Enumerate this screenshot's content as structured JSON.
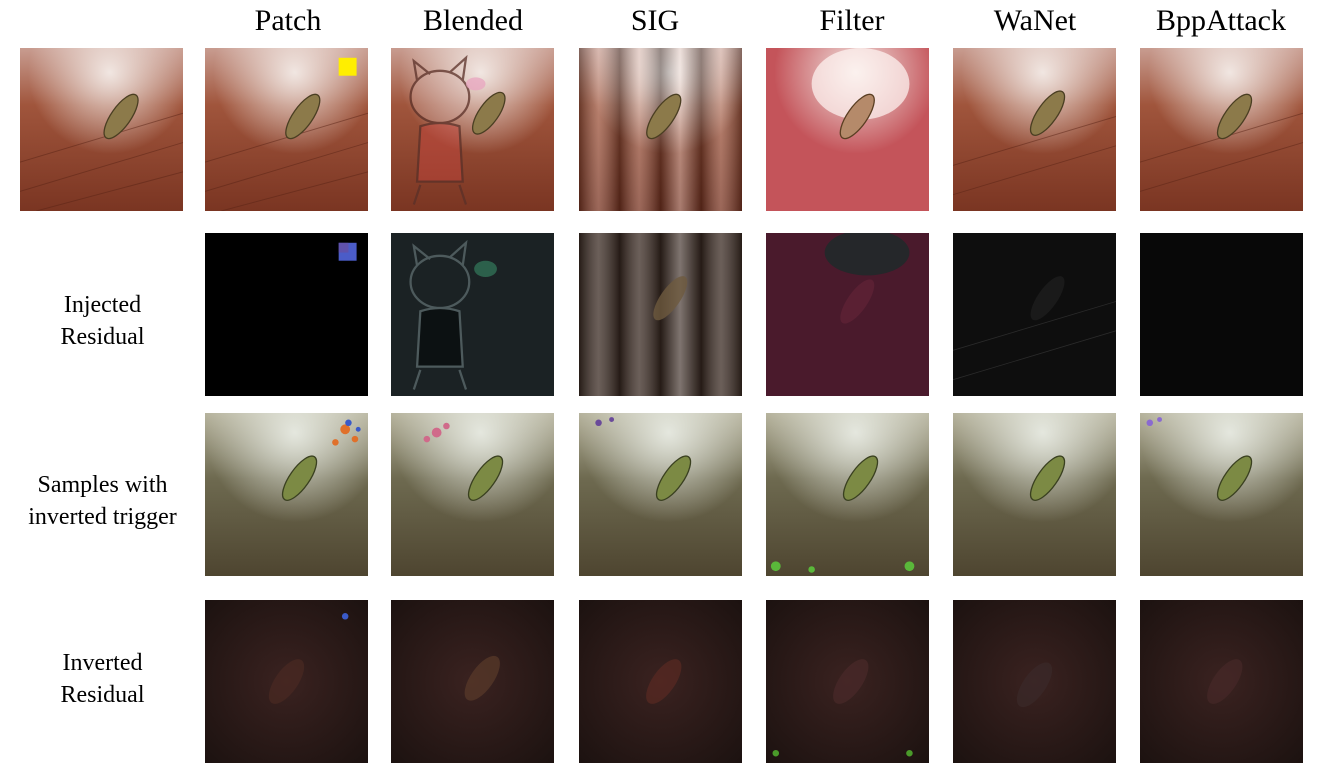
{
  "columns": [
    "Patch",
    "Blended",
    "SIG",
    "Filter",
    "WaNet",
    "BppAttack"
  ],
  "rows": [
    {
      "label_line1": "",
      "label_line2": ""
    },
    {
      "label_line1": "Injected",
      "label_line2": "Residual"
    },
    {
      "label_line1": "Samples with",
      "label_line2": "inverted trigger"
    },
    {
      "label_line1": "Inverted",
      "label_line2": "Residual"
    }
  ],
  "colors": {
    "wood": "#8a3f28",
    "wood_dark": "#5a2416",
    "highlight": "#e9d6cf",
    "slug": "#8c7a4a",
    "patch_trigger": "#ffee00",
    "inverted_wood": "#4a4632",
    "inverted_light": "#d8dccf",
    "residual_dark": "#1a1210"
  }
}
